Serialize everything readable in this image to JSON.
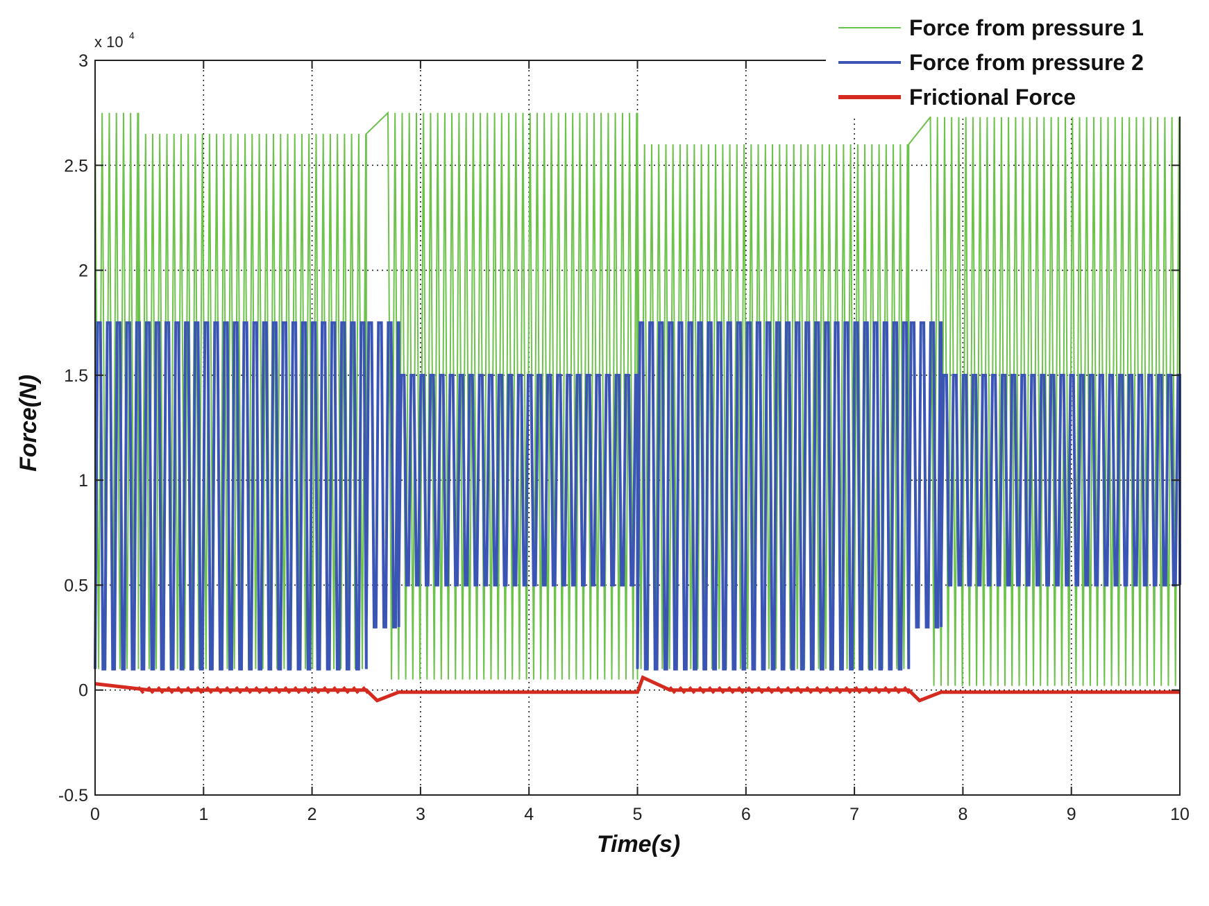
{
  "chart_data": {
    "type": "line",
    "title": "",
    "xlabel": "Time(s)",
    "ylabel": "Force(N)",
    "xlim": [
      0,
      10
    ],
    "ylim": [
      -5000,
      30000
    ],
    "x_ticks": [
      0,
      1,
      2,
      3,
      4,
      5,
      6,
      7,
      8,
      9,
      10
    ],
    "y_ticks": [
      -5000,
      0,
      5000,
      10000,
      15000,
      20000,
      25000,
      30000
    ],
    "y_tick_labels": [
      "-0.5",
      "0",
      "0.5",
      "1",
      "1.5",
      "2",
      "2.5",
      "3"
    ],
    "y_exponent_label": "x 10",
    "y_exponent_power": "4",
    "grid": true,
    "legend_position": "top-right",
    "series": [
      {
        "name": "Force from pressure 1",
        "color": "#6cc24a",
        "description": "high-frequency oscillation",
        "segments": [
          {
            "t": [
              0.0,
              0.4
            ],
            "peak": 27500,
            "trough": 1000
          },
          {
            "t": [
              0.4,
              2.5
            ],
            "peak": 26500,
            "trough": 1000
          },
          {
            "t": [
              2.7,
              5.0
            ],
            "peak": 27500,
            "trough": 500
          },
          {
            "t": [
              5.0,
              7.5
            ],
            "peak": 26000,
            "trough": 1000
          },
          {
            "t": [
              7.7,
              10.0
            ],
            "peak": 27300,
            "trough": 200
          }
        ]
      },
      {
        "name": "Force from pressure 2",
        "color": "#3b55b5",
        "segments": [
          {
            "t": [
              0.0,
              2.5
            ],
            "peak": 17500,
            "trough": 1000
          },
          {
            "t": [
              2.5,
              2.8
            ],
            "peak": 17500,
            "trough": 3000
          },
          {
            "t": [
              2.8,
              5.0
            ],
            "peak": 15000,
            "trough": 5000
          },
          {
            "t": [
              5.0,
              7.5
            ],
            "peak": 17500,
            "trough": 1000
          },
          {
            "t": [
              7.5,
              7.8
            ],
            "peak": 17500,
            "trough": 3000
          },
          {
            "t": [
              7.8,
              10.0
            ],
            "peak": 15000,
            "trough": 5000
          }
        ]
      },
      {
        "name": "Frictional Force",
        "color": "#d42a1f",
        "points": [
          [
            0.0,
            300
          ],
          [
            0.5,
            0
          ],
          [
            2.5,
            0
          ],
          [
            2.6,
            -500
          ],
          [
            2.8,
            -100
          ],
          [
            5.0,
            -100
          ],
          [
            5.05,
            600
          ],
          [
            5.3,
            0
          ],
          [
            7.5,
            0
          ],
          [
            7.6,
            -500
          ],
          [
            7.8,
            -100
          ],
          [
            10.0,
            -100
          ]
        ]
      }
    ]
  }
}
